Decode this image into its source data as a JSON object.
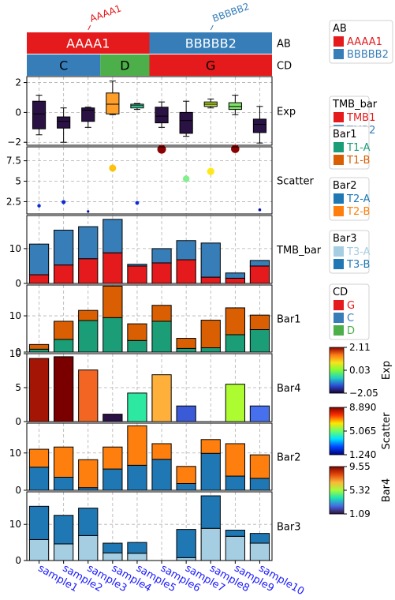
{
  "chart_data": {
    "type": "composite_annotated_chart",
    "samples": [
      "sample1",
      "sample2",
      "sample3",
      "sample4",
      "sample5",
      "sample6",
      "sample7",
      "sample8",
      "sample9",
      "sample10"
    ],
    "annotations": {
      "AB": {
        "label": "AB",
        "segments": [
          {
            "name": "AAAA1",
            "start": 0,
            "end": 5,
            "color": "#e41a1c"
          },
          {
            "name": "BBBBB2",
            "start": 5,
            "end": 10,
            "color": "#377eb8"
          }
        ]
      },
      "CD": {
        "label": "CD",
        "segments": [
          {
            "name": "C",
            "start": 0,
            "end": 3,
            "color": "#377eb8"
          },
          {
            "name": "D",
            "start": 3,
            "end": 5,
            "color": "#4daf4a"
          },
          {
            "name": "G",
            "start": 5,
            "end": 10,
            "color": "#e41a1c"
          }
        ]
      }
    },
    "panels": [
      {
        "id": "exp",
        "type": "boxplot",
        "label": "Exp",
        "ylim": [
          -2.2,
          2.4
        ],
        "yticks": [
          -2,
          0,
          2
        ],
        "colorbar": {
          "title": "Exp",
          "min": -2.05,
          "max": 2.11,
          "ticks": [
            "2.11",
            "0.03",
            "−2.05"
          ]
        },
        "boxes": [
          {
            "whislo": -1.5,
            "q1": -1.1,
            "med": -0.1,
            "q3": 0.75,
            "whishi": 1.15,
            "color": "#2a1245"
          },
          {
            "whislo": -2.0,
            "q1": -1.05,
            "med": -0.6,
            "q3": -0.3,
            "whishi": 0.3,
            "color": "#2a1245"
          },
          {
            "whislo": -1.0,
            "q1": -0.6,
            "med": 0.15,
            "q3": 0.3,
            "whishi": 0.35,
            "color": "#2a1245"
          },
          {
            "whislo": -0.15,
            "q1": -0.1,
            "med": 0.55,
            "q3": 1.3,
            "whishi": 2.1,
            "color": "#ff9f2a"
          },
          {
            "whislo": 0.2,
            "q1": 0.3,
            "med": 0.45,
            "q3": 0.55,
            "whishi": 0.6,
            "color": "#4de3b4"
          },
          {
            "whislo": -1.0,
            "q1": -0.7,
            "med": -0.25,
            "q3": 0.35,
            "whishi": 0.7,
            "color": "#2a1245"
          },
          {
            "whislo": -1.6,
            "q1": -1.4,
            "med": -0.55,
            "q3": 0.0,
            "whishi": 0.75,
            "color": "#2a1245"
          },
          {
            "whislo": 0.3,
            "q1": 0.4,
            "med": 0.55,
            "q3": 0.7,
            "whishi": 0.9,
            "color": "#bde13b"
          },
          {
            "whislo": -0.15,
            "q1": 0.2,
            "med": 0.4,
            "q3": 0.65,
            "whishi": 1.15,
            "color": "#7fe36a"
          },
          {
            "whislo": -2.05,
            "q1": -1.35,
            "med": -0.8,
            "q3": -0.45,
            "whishi": 0.4,
            "color": "#2a1245"
          }
        ]
      },
      {
        "id": "scatter",
        "type": "scatter",
        "label": "Scatter",
        "ylim": [
          1.0,
          9.2
        ],
        "yticks": [
          2.5,
          5.0,
          7.5
        ],
        "colorbar": {
          "title": "Scatter",
          "min": 1.24,
          "max": 8.89,
          "ticks": [
            "8.890",
            "5.065",
            "1.240"
          ]
        },
        "points": [
          {
            "y": 2.0,
            "size": 2.2,
            "color": "#0a2ad9"
          },
          {
            "y": 2.45,
            "size": 2.6,
            "color": "#0a2ad9"
          },
          {
            "y": 1.3,
            "size": 1.6,
            "color": "#050fa0"
          },
          {
            "y": 6.6,
            "size": 4.5,
            "color": "#ffc20a"
          },
          {
            "y": 2.35,
            "size": 2.4,
            "color": "#0a2ad9"
          },
          {
            "y": 8.9,
            "size": 5.5,
            "color": "#8b0000"
          },
          {
            "y": 5.3,
            "size": 4.2,
            "color": "#7ff08a"
          },
          {
            "y": 6.2,
            "size": 4.6,
            "color": "#ffe81a"
          },
          {
            "y": 8.95,
            "size": 5.3,
            "color": "#8b0000"
          },
          {
            "y": 1.5,
            "size": 1.8,
            "color": "#050fa0"
          }
        ]
      },
      {
        "id": "tmb",
        "type": "stacked_bar",
        "label": "TMB_bar",
        "ylim": [
          0,
          19.5
        ],
        "yticks": [
          0,
          10
        ],
        "legend": {
          "title": "TMB_bar",
          "entries": [
            {
              "name": "TMB1",
              "color": "#e41a1c"
            },
            {
              "name": "TMB2",
              "color": "#377eb8"
            }
          ]
        },
        "series": [
          {
            "name": "TMB1",
            "color": "#e41a1c",
            "values": [
              2.5,
              5.3,
              7.1,
              8.8,
              5.0,
              5.9,
              6.8,
              1.8,
              1.5,
              5.0
            ]
          },
          {
            "name": "TMB2",
            "color": "#377eb8",
            "values": [
              8.8,
              10.0,
              9.2,
              9.6,
              0.5,
              4.1,
              5.5,
              9.8,
              1.5,
              1.6
            ]
          }
        ]
      },
      {
        "id": "bar1",
        "type": "stacked_bar",
        "label": "Bar1",
        "ylim": [
          0,
          18.5
        ],
        "yticks": [
          0,
          10
        ],
        "legend": {
          "title": "Bar1",
          "entries": [
            {
              "name": "T1-A",
              "color": "#1b9e77"
            },
            {
              "name": "T1-B",
              "color": "#d95f02"
            }
          ]
        },
        "series": [
          {
            "name": "T1-A",
            "color": "#1b9e77",
            "values": [
              0.8,
              3.5,
              8.7,
              9.5,
              3.2,
              8.5,
              1.0,
              1.2,
              4.8,
              6.2
            ]
          },
          {
            "name": "T1-B",
            "color": "#d95f02",
            "values": [
              1.3,
              5.0,
              2.8,
              8.7,
              4.6,
              4.4,
              2.8,
              7.6,
              7.4,
              4.0
            ]
          }
        ]
      },
      {
        "id": "bar4",
        "type": "bar",
        "label": "Bar4",
        "ylim": [
          0,
          10.0
        ],
        "yticks": [
          0,
          5,
          10
        ],
        "colorbar": {
          "title": "Bar4",
          "min": 1.09,
          "max": 9.55,
          "ticks": [
            "9.55",
            "5.32",
            "1.09"
          ]
        },
        "values": [
          9.3,
          9.55,
          7.6,
          1.09,
          4.2,
          6.9,
          2.3,
          0.0,
          5.5,
          2.3
        ],
        "colors": [
          "#a51505",
          "#7a0000",
          "#f26522",
          "#2a1245",
          "#2de8a0",
          "#ffb03a",
          "#3a5ad8",
          "#ffffff",
          "#adfc31",
          "#4670ee"
        ]
      },
      {
        "id": "bar2",
        "type": "stacked_bar",
        "label": "Bar2",
        "ylim": [
          0,
          18.0
        ],
        "yticks": [
          0,
          10
        ],
        "legend": {
          "title": "Bar2",
          "entries": [
            {
              "name": "T2-A",
              "color": "#1f78b4"
            },
            {
              "name": "T2-B",
              "color": "#ff7f0e"
            }
          ]
        },
        "series": [
          {
            "name": "T2-A",
            "color": "#1f78b4",
            "values": [
              6.2,
              3.5,
              0.7,
              5.7,
              6.7,
              8.3,
              1.8,
              9.9,
              3.8,
              3.2
            ]
          },
          {
            "name": "T2-B",
            "color": "#ff7f0e",
            "values": [
              4.8,
              8.1,
              7.5,
              5.9,
              10.6,
              4.2,
              4.6,
              3.7,
              8.7,
              6.3
            ]
          }
        ]
      },
      {
        "id": "bar3",
        "type": "stacked_bar",
        "label": "Bar3",
        "ylim": [
          0,
          19.0
        ],
        "yticks": [
          0,
          10
        ],
        "legend": {
          "title": "Bar3",
          "entries": [
            {
              "name": "T3-A",
              "color": "#a6cee3"
            },
            {
              "name": "T3-B",
              "color": "#1f78b4"
            }
          ]
        },
        "series": [
          {
            "name": "T3-A",
            "color": "#a6cee3",
            "values": [
              5.8,
              4.6,
              6.9,
              2.1,
              2.0,
              0.0,
              0.8,
              8.9,
              6.7,
              4.8
            ]
          },
          {
            "name": "T3-B",
            "color": "#1f78b4",
            "values": [
              9.2,
              7.9,
              7.6,
              2.7,
              3.0,
              0.0,
              7.8,
              9.0,
              1.7,
              2.7
            ]
          }
        ]
      }
    ],
    "legends_side": [
      {
        "title": "AB",
        "entries": [
          {
            "name": "AAAA1",
            "color": "#e41a1c"
          },
          {
            "name": "BBBBB2",
            "color": "#377eb8"
          }
        ]
      },
      {
        "title": "TMB_bar",
        "entries": [
          {
            "name": "TMB1",
            "color": "#e41a1c"
          },
          {
            "name": "TMB2",
            "color": "#377eb8"
          }
        ]
      },
      {
        "title": "Bar1",
        "entries": [
          {
            "name": "T1-A",
            "color": "#1b9e77"
          },
          {
            "name": "T1-B",
            "color": "#d95f02"
          }
        ]
      },
      {
        "title": "Bar2",
        "entries": [
          {
            "name": "T2-A",
            "color": "#1f78b4"
          },
          {
            "name": "T2-B",
            "color": "#ff7f0e"
          }
        ]
      },
      {
        "title": "Bar3",
        "entries": [
          {
            "name": "T3-A",
            "color": "#a6cee3"
          },
          {
            "name": "T3-B",
            "color": "#1f78b4"
          }
        ]
      },
      {
        "title": "CD",
        "entries": [
          {
            "name": "G",
            "color": "#e41a1c"
          },
          {
            "name": "C",
            "color": "#377eb8"
          },
          {
            "name": "D",
            "color": "#4daf4a"
          }
        ]
      }
    ],
    "colors": {
      "tick_label": "#1a1aff",
      "grid": "#b0b0b0"
    }
  }
}
